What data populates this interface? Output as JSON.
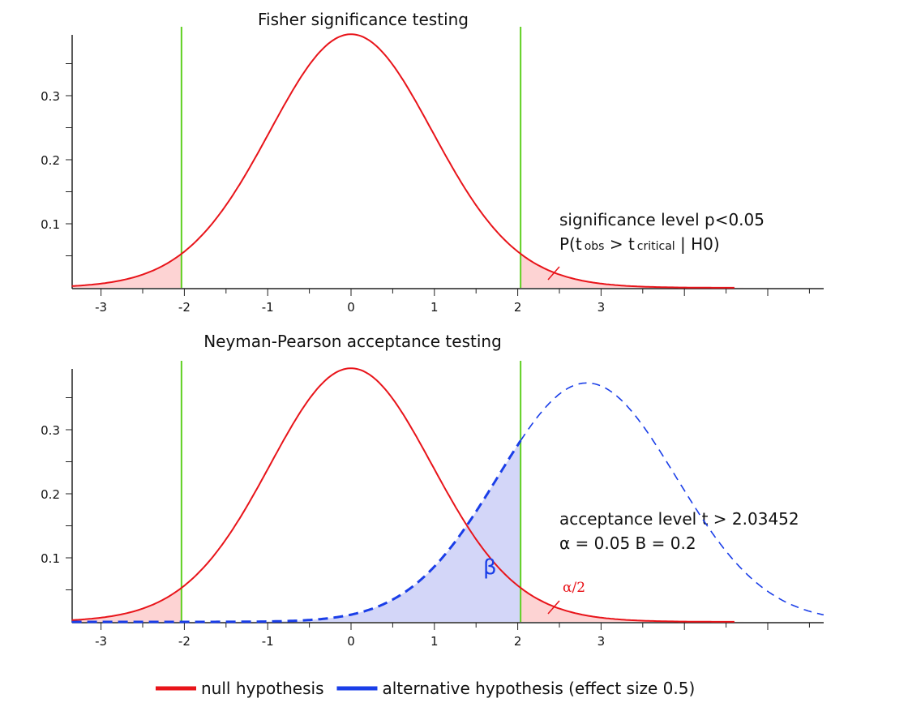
{
  "chart_data": [
    {
      "type": "line",
      "title": "Fisher significance testing",
      "xlim": [
        -3.35,
        5.67
      ],
      "ylim": [
        0,
        0.4
      ],
      "xticks": [
        "-3",
        "-2",
        "-1",
        "0",
        "1",
        "2",
        "3"
      ],
      "yticks": [
        "0.1",
        "0.2",
        "0.3"
      ],
      "critical_values": [
        -2.03452,
        2.03452
      ],
      "series": [
        {
          "name": "null hypothesis",
          "distribution": "t",
          "df": 33,
          "center": 0,
          "peak": 0.398,
          "color": "#e8141a",
          "style": "solid"
        }
      ],
      "shaded": [
        {
          "range": [
            -3.35,
            -2.03452
          ],
          "color": "#fdd3d3"
        },
        {
          "range": [
            2.03452,
            5.67
          ],
          "color": "#fdd3d3"
        }
      ],
      "annotation_lines": [
        "significance level p<0.05",
        "P(t obs > t critical | H0)"
      ],
      "annotation_parts": {
        "p": "P(t",
        "obs": "obs",
        "gt": " > t",
        "crit": "critical",
        "end": " | H0)"
      }
    },
    {
      "type": "line",
      "title": "Neyman-Pearson acceptance testing",
      "xlim": [
        -3.35,
        5.67
      ],
      "ylim": [
        0,
        0.4
      ],
      "xticks": [
        "-3",
        "-2",
        "-1",
        "0",
        "1",
        "2",
        "3"
      ],
      "yticks": [
        "0.1",
        "0.2",
        "0.3"
      ],
      "critical_values": [
        -2.03452,
        2.03452
      ],
      "series": [
        {
          "name": "null hypothesis",
          "distribution": "t",
          "df": 33,
          "center": 0,
          "peak": 0.398,
          "color": "#e8141a",
          "style": "solid"
        },
        {
          "name": "alternative hypothesis (effect size 0.5)",
          "distribution": "t",
          "center": 2.83,
          "peak": 0.373,
          "color": "#1a3ee8",
          "style": "dashed"
        }
      ],
      "shaded": [
        {
          "range": [
            -3.35,
            -2.03452
          ],
          "color": "#fdd3d3"
        },
        {
          "range": [
            2.03452,
            5.67
          ],
          "color": "#fdd3d3"
        },
        {
          "range": [
            -3.35,
            2.03452
          ],
          "under": "alternative",
          "color": "#d3d6f8"
        }
      ],
      "annotation_lines": [
        "acceptance level t > 2.03452",
        "α = 0.05 B = 0.2"
      ],
      "labels": {
        "beta": "β",
        "alpha_half": "α/2"
      }
    }
  ],
  "legend": {
    "placement": "bottom",
    "items": [
      {
        "label": "null hypothesis",
        "color": "#e8141a"
      },
      {
        "label": "alternative hypothesis (effect size 0.5)",
        "color": "#1a3ee8"
      }
    ]
  },
  "colors": {
    "critical_line": "#5fd020"
  }
}
